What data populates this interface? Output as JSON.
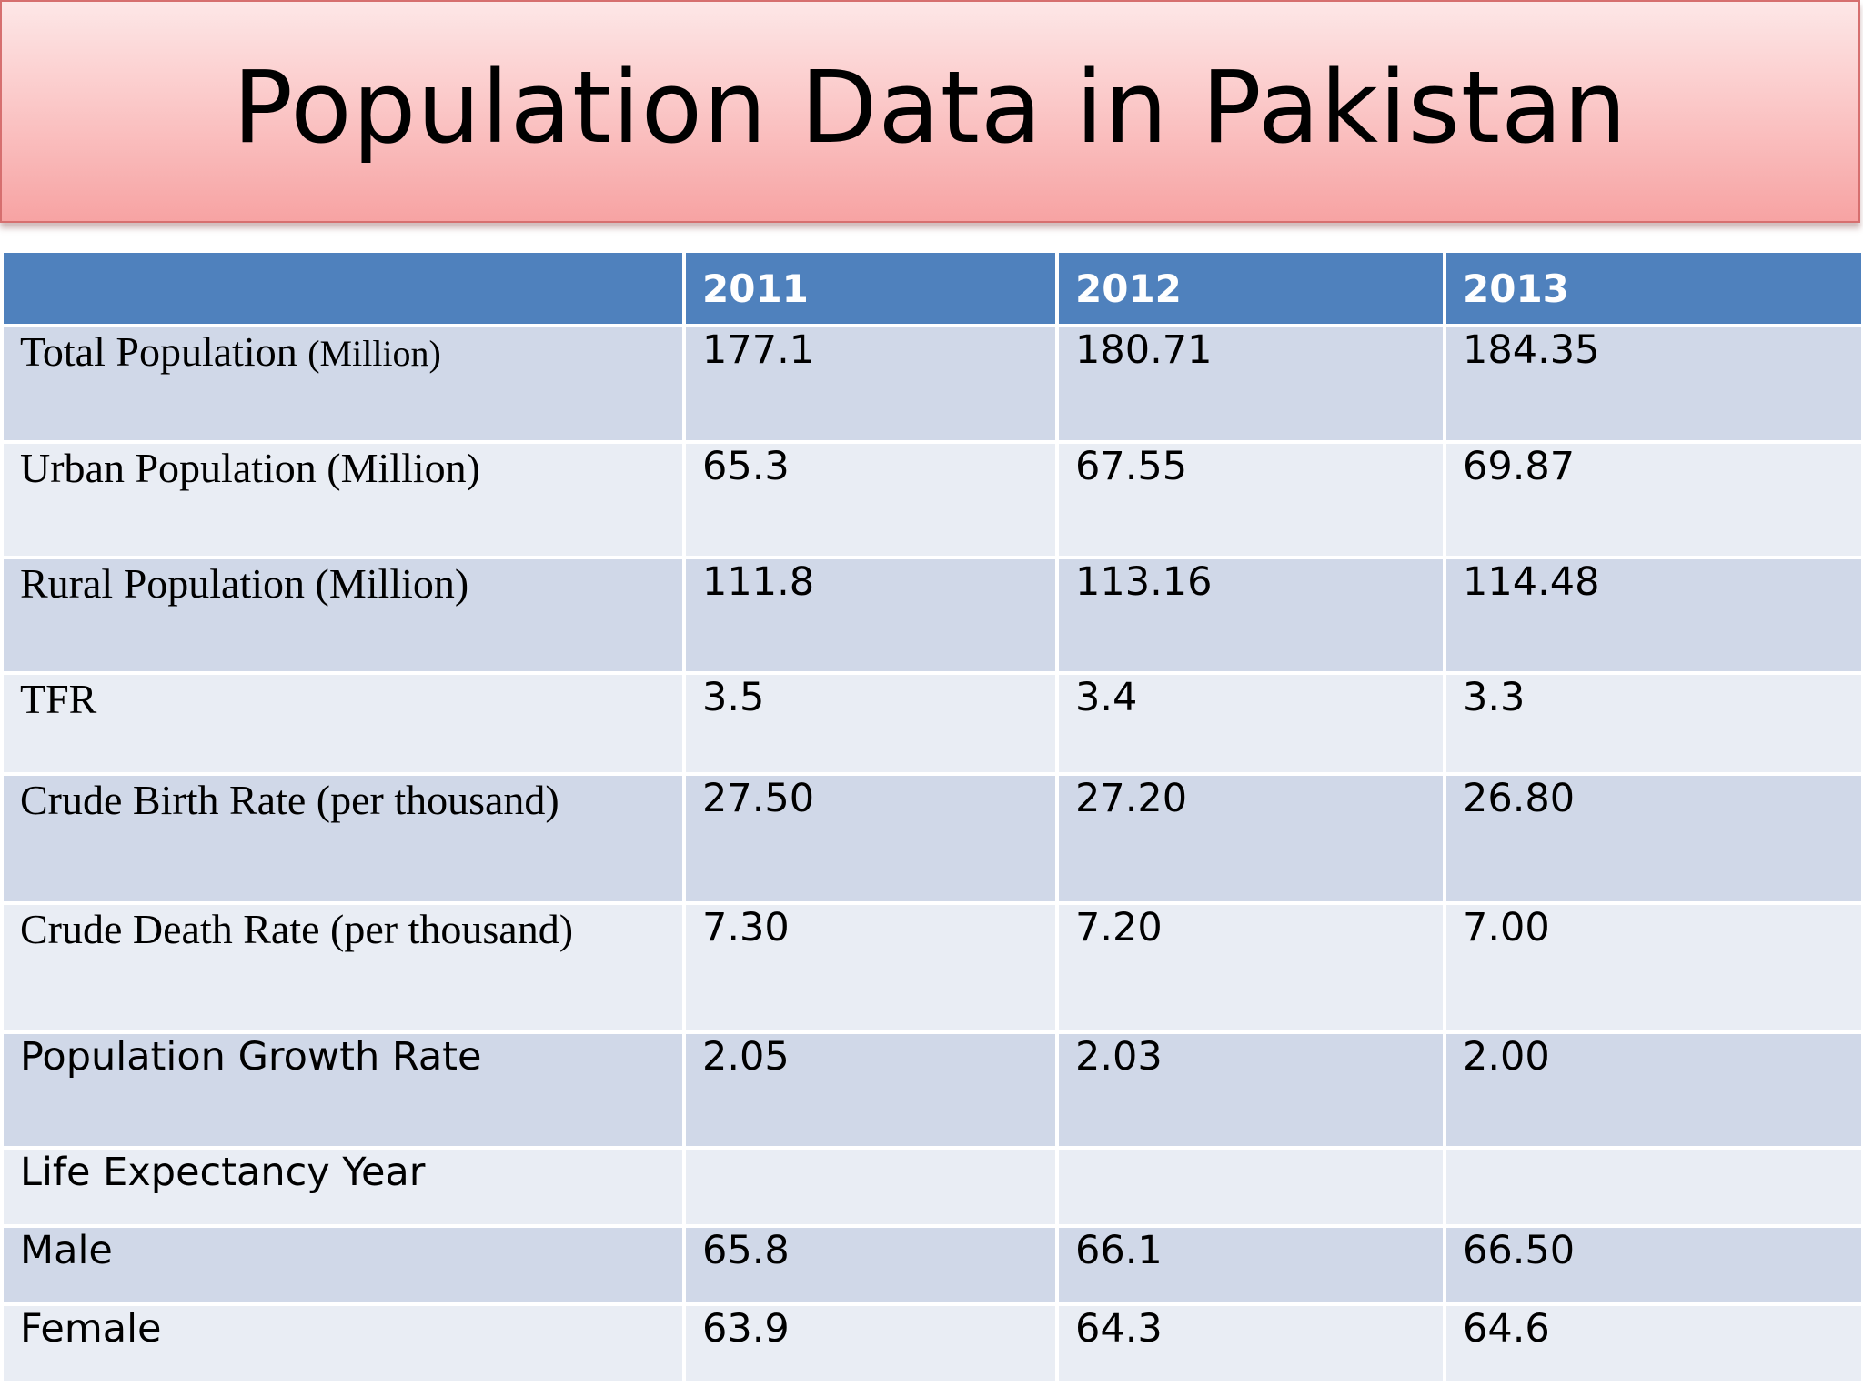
{
  "title": "Population Data in Pakistan",
  "header": {
    "blank": "",
    "years": [
      "2011",
      "2012",
      "2013"
    ]
  },
  "rows": [
    {
      "label": "Total Population ",
      "label_small": "(Million)",
      "values": [
        "177.1",
        "180.71",
        "184.35"
      ]
    },
    {
      "label": "Urban Population (Million)",
      "values": [
        "65.3",
        "67.55",
        "69.87"
      ]
    },
    {
      "label": "Rural Population (Million)",
      "values": [
        "111.8",
        "113.16",
        "114.48"
      ]
    },
    {
      "label": "TFR",
      "values": [
        "3.5",
        "3.4",
        "3.3"
      ]
    },
    {
      "label": "Crude Birth Rate (per thousand)",
      "values": [
        "27.50",
        "27.20",
        "26.80"
      ]
    },
    {
      "label": "Crude Death Rate (per thousand)",
      "values": [
        "7.30",
        "7.20",
        "7.00"
      ]
    },
    {
      "label": "Population Growth Rate",
      "values": [
        "2.05",
        "2.03",
        "2.00"
      ]
    },
    {
      "label": "Life Expectancy Year",
      "values": [
        "",
        "",
        ""
      ]
    },
    {
      "label": "Male",
      "values": [
        "65.8",
        "66.1",
        "66.50"
      ]
    },
    {
      "label": "Female",
      "values": [
        "63.9",
        "64.3",
        "64.6"
      ]
    }
  ],
  "colors": {
    "header_bg": "#4f81bd",
    "row_odd_bg": "#d0d8e8",
    "row_even_bg": "#e9edf4",
    "title_banner": "#f7a3a3"
  }
}
